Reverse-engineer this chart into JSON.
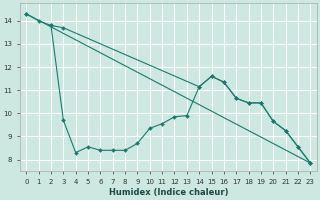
{
  "title": "",
  "xlabel": "Humidex (Indice chaleur)",
  "bg_color": "#cce8e0",
  "grid_color": "#ffffff",
  "line_color": "#1a7a6e",
  "xlim": [
    -0.5,
    23.5
  ],
  "ylim": [
    7.5,
    14.75
  ],
  "xticks": [
    0,
    1,
    2,
    3,
    4,
    5,
    6,
    7,
    8,
    9,
    10,
    11,
    12,
    13,
    14,
    15,
    16,
    17,
    18,
    19,
    20,
    21,
    22,
    23
  ],
  "yticks": [
    8,
    9,
    10,
    11,
    12,
    13,
    14
  ],
  "line1_x": [
    0,
    1,
    2,
    3,
    4,
    5,
    6,
    7,
    8,
    9,
    10,
    11,
    12,
    13,
    14,
    15,
    16,
    17,
    18,
    19,
    20,
    21,
    22,
    23
  ],
  "line1_y": [
    14.3,
    14.0,
    13.8,
    9.7,
    8.3,
    8.55,
    8.4,
    8.4,
    8.4,
    8.7,
    9.35,
    9.55,
    9.85,
    9.9,
    11.15,
    11.6,
    11.35,
    10.65,
    10.45,
    10.45,
    9.65,
    9.25,
    8.55,
    7.85
  ],
  "line2_x": [
    0,
    23
  ],
  "line2_y": [
    14.3,
    7.85
  ],
  "line3_x": [
    2,
    3,
    14,
    15,
    16,
    17,
    18,
    19,
    20,
    21,
    22,
    23
  ],
  "line3_y": [
    13.8,
    13.7,
    11.15,
    11.6,
    11.35,
    10.65,
    10.45,
    10.45,
    9.65,
    9.25,
    8.55,
    7.85
  ]
}
